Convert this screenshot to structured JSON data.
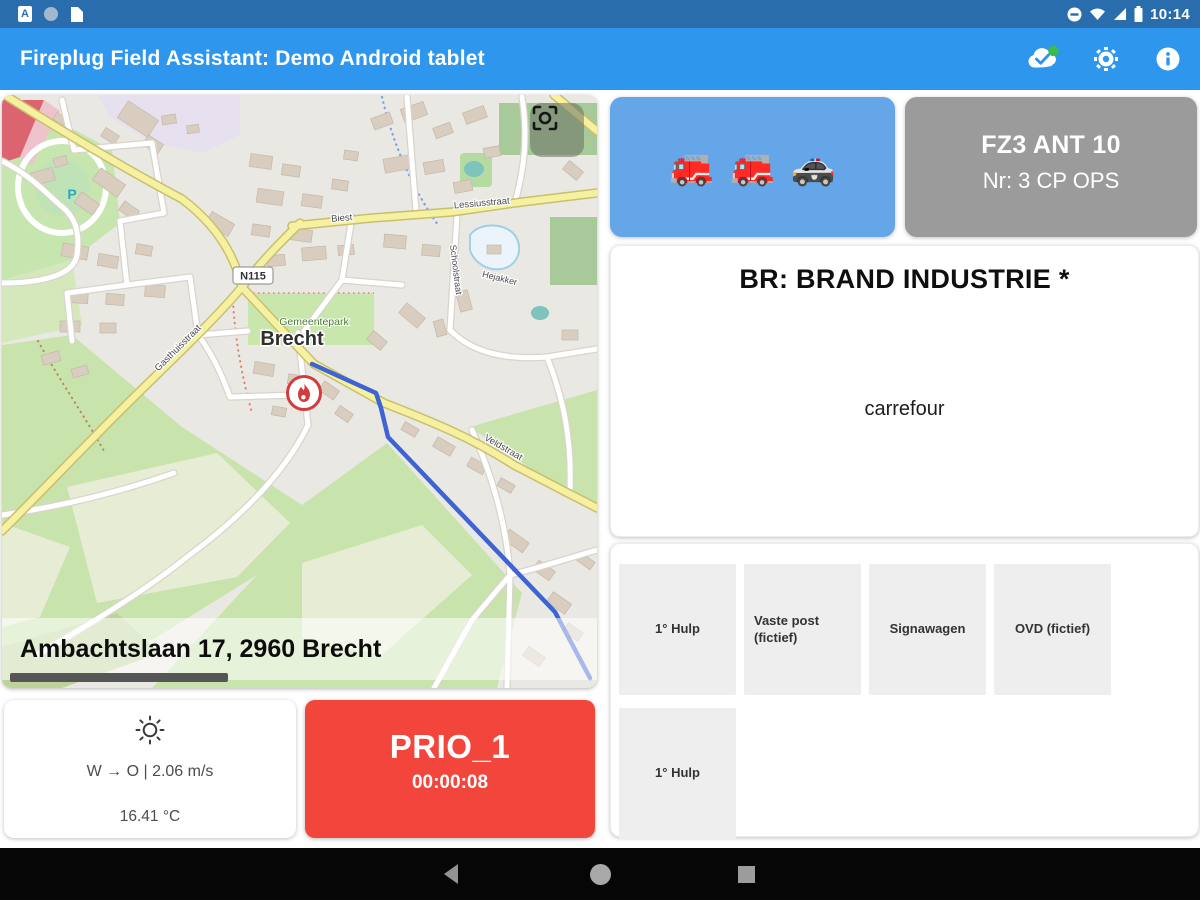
{
  "status_bar": {
    "time": "10:14"
  },
  "app_bar": {
    "title": "Fireplug Field Assistant: Demo Android tablet"
  },
  "map": {
    "address": "Ambachtslaan 17, 2960 Brecht",
    "city": "Brecht",
    "park": "Gemeentepark",
    "road_shield": "N115",
    "parking": "P",
    "streets": {
      "lessius": "Lessiusstraat",
      "biest": "Biest",
      "gasthuis": "Gasthuisstraat",
      "veld": "Veldstraat",
      "hejakker": "Hejakker",
      "school": "Schoolstraat"
    }
  },
  "weather": {
    "wind": "W → O  |  2.06 m/s",
    "temp": "16.41 °C"
  },
  "prio": {
    "label": "PRIO_1",
    "timer": "00:00:08"
  },
  "units": {
    "vehicles": [
      "🚒",
      "🚒",
      "🚓"
    ],
    "callsign": "FZ3 ANT 10",
    "detail": "Nr: 3 CP OPS"
  },
  "incident": {
    "title": "BR: BRAND INDUSTRIE *",
    "note": "carrefour"
  },
  "actions": [
    "1° Hulp",
    "Vaste post (fictief)",
    "Signawagen",
    "OVD (fictief)",
    "1° Hulp"
  ],
  "colors": {
    "status_blue": "#2A6DAD",
    "accent_blue": "#2E96EC",
    "prio_red": "#F2453C",
    "unit_blue": "#64A6E8",
    "unit_gray": "#9B9B9B",
    "route_blue": "#3E63D3",
    "sync_green": "#3DBA4E"
  }
}
